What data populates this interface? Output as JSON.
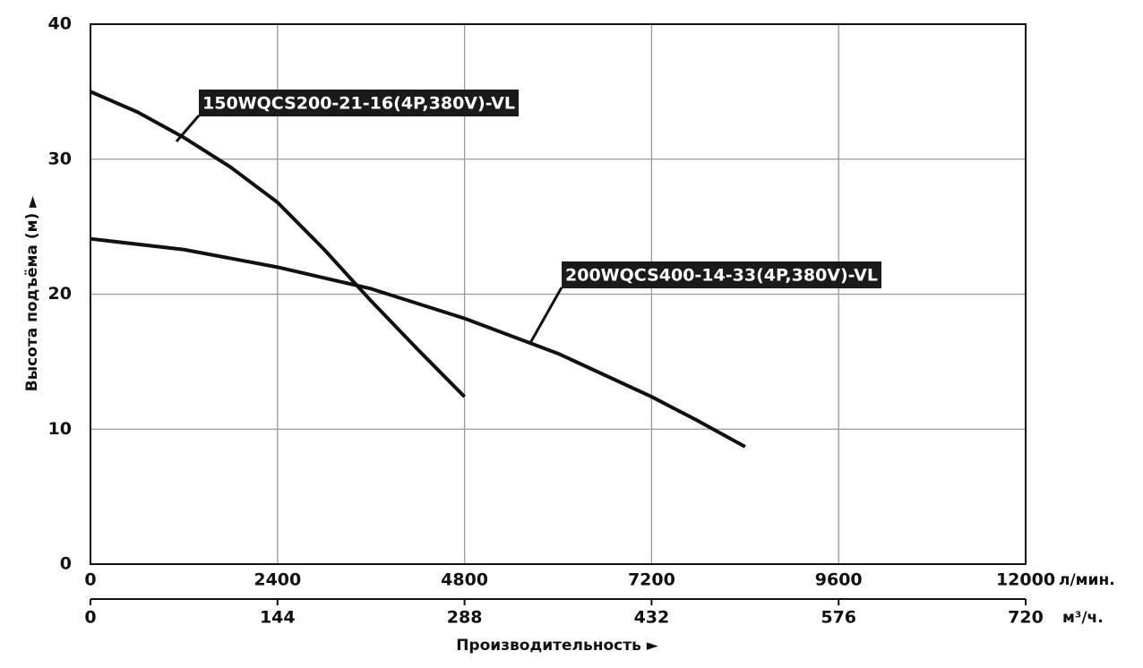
{
  "chart_data": {
    "type": "line",
    "x_label": "Производительность ►",
    "y_label": "Высота подъёма (м) ►",
    "x_unit": "л/мин.",
    "x2_unit": "м³/ч.",
    "xlim": [
      0,
      12000
    ],
    "xticks": [
      0,
      2400,
      4800,
      7200,
      9600,
      12000
    ],
    "x2lim": [
      0,
      720
    ],
    "x2ticks": [
      0,
      144,
      288,
      432,
      576,
      720
    ],
    "ylim": [
      0,
      40
    ],
    "yticks": [
      0,
      10,
      20,
      30,
      40
    ],
    "grid": true,
    "series": [
      {
        "name": "150WQCS200-21-16(4P,380V)-VL",
        "color": "#111111",
        "x": [
          0,
          600,
          1200,
          1800,
          2400,
          3000,
          3600,
          4200,
          4800
        ],
        "values": [
          35,
          33.5,
          31.6,
          29.4,
          26.8,
          23.3,
          19.5,
          15.9,
          12.4
        ]
      },
      {
        "name": "200WQCS400-14-33(4P,380V)-VL",
        "color": "#111111",
        "x": [
          0,
          1200,
          2400,
          3600,
          4800,
          6000,
          7200,
          7800,
          8400
        ],
        "values": [
          24.1,
          23.3,
          22.0,
          20.4,
          18.2,
          15.6,
          12.4,
          10.6,
          8.7
        ]
      }
    ]
  }
}
